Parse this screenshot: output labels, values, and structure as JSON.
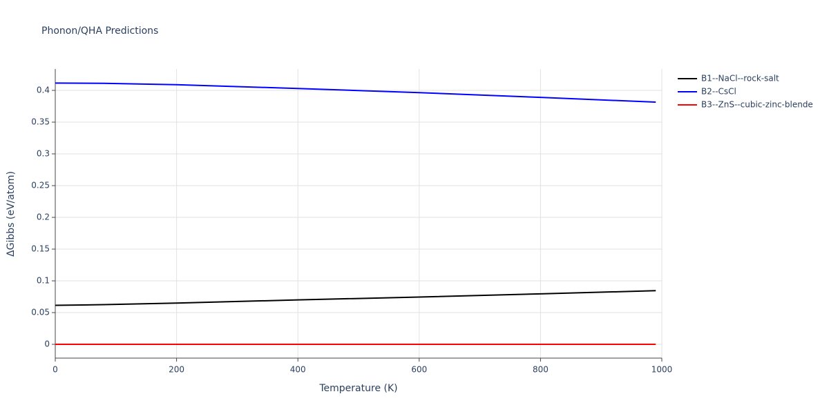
{
  "chart_data": {
    "type": "line",
    "title": "Phonon/QHA Predictions",
    "x_label": "Temperature (K)",
    "y_label": "ΔGibbs (eV/atom)",
    "x": [
      0,
      80,
      200,
      400,
      600,
      800,
      990
    ],
    "series": [
      {
        "name": "B1--NaCl--rock-salt",
        "color": "#000000",
        "values": [
          0.0615,
          0.0625,
          0.065,
          0.07,
          0.0745,
          0.0795,
          0.0845
        ]
      },
      {
        "name": "B2--CsCl",
        "color": "#0000ff",
        "values": [
          0.4115,
          0.4112,
          0.409,
          0.403,
          0.3965,
          0.389,
          0.3815
        ]
      },
      {
        "name": "B3--ZnS--cubic-zinc-blende",
        "color": "#ff0000",
        "values": [
          0,
          0,
          0,
          0,
          0,
          0,
          0
        ]
      }
    ],
    "xlim": [
      0,
      1000
    ],
    "xticks": [
      0,
      200,
      400,
      600,
      800,
      1000
    ],
    "ylim": [
      -0.0217,
      0.4337
    ],
    "yticks": [
      0,
      0.05,
      0.1,
      0.15,
      0.2,
      0.25,
      0.3,
      0.35,
      0.4
    ],
    "grid": true
  }
}
